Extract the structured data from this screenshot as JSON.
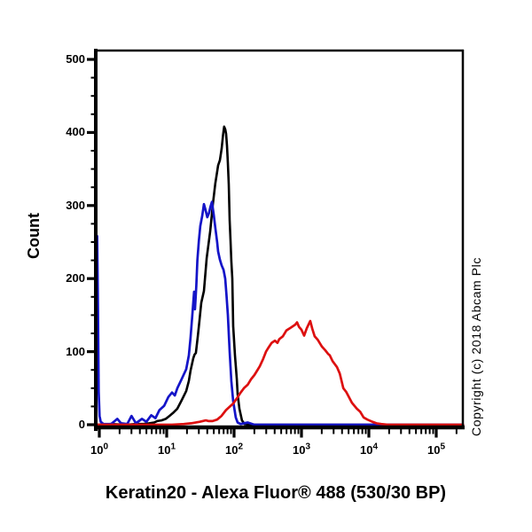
{
  "figure": {
    "background": "#ffffff"
  },
  "chart_data": {
    "type": "line",
    "subtype": "flow-cytometry-histogram-overlay",
    "title": "Keratin20 - Alexa Fluor® 488 (530/30 BP)",
    "ylabel": "Count",
    "side_text": "Copyright (c) 2018 Abcam Plc",
    "grid": false,
    "legend": false,
    "x_axis": {
      "scale": "log10",
      "range": [
        0.885,
        256000
      ],
      "ticks": [
        {
          "value": 1,
          "label_base": "10",
          "label_exp": "0"
        },
        {
          "value": 10,
          "label_base": "10",
          "label_exp": "1"
        },
        {
          "value": 100,
          "label_base": "10",
          "label_exp": "2"
        },
        {
          "value": 1000,
          "label_base": "10",
          "label_exp": "3"
        },
        {
          "value": 10000,
          "label_base": "10",
          "label_exp": "4"
        },
        {
          "value": 100000,
          "label_base": "10",
          "label_exp": "5"
        }
      ],
      "minor_ticks": "2-9 each decade"
    },
    "y_axis": {
      "range": [
        0,
        513
      ],
      "major_ticks": [
        0,
        100,
        200,
        300,
        400,
        500
      ],
      "minor_tick_step": 25
    },
    "series": [
      {
        "name": "black",
        "color": "#000000",
        "stroke_width": 2.6,
        "points": [
          [
            0.885,
            0
          ],
          [
            1.5,
            1
          ],
          [
            2.5,
            0
          ],
          [
            3.5,
            1
          ],
          [
            4.5,
            1
          ],
          [
            5.5,
            2
          ],
          [
            6.5,
            3
          ],
          [
            7.2,
            5
          ],
          [
            8.4,
            6
          ],
          [
            9.7,
            8
          ],
          [
            11,
            12
          ],
          [
            12.4,
            16
          ],
          [
            14.4,
            22
          ],
          [
            16.8,
            34
          ],
          [
            19.5,
            46
          ],
          [
            21.3,
            60
          ],
          [
            22.6,
            74
          ],
          [
            24.8,
            91
          ],
          [
            25.9,
            96
          ],
          [
            27.1,
            98
          ],
          [
            28.9,
            120
          ],
          [
            30.7,
            143
          ],
          [
            32.6,
            167
          ],
          [
            35.7,
            183
          ],
          [
            39.2,
            228
          ],
          [
            44.3,
            265
          ],
          [
            48.4,
            301
          ],
          [
            52.6,
            330
          ],
          [
            56.2,
            347
          ],
          [
            58,
            355
          ],
          [
            61.5,
            362
          ],
          [
            65.5,
            378
          ],
          [
            68.5,
            396
          ],
          [
            71.3,
            408
          ],
          [
            74,
            404
          ],
          [
            76.1,
            398
          ],
          [
            78.5,
            382
          ],
          [
            81,
            358
          ],
          [
            83.5,
            329
          ],
          [
            86,
            280
          ],
          [
            88.5,
            252
          ],
          [
            91,
            224
          ],
          [
            94,
            200
          ],
          [
            97,
            135
          ],
          [
            103,
            95
          ],
          [
            110,
            62
          ],
          [
            113,
            42
          ],
          [
            120,
            22
          ],
          [
            131,
            6
          ],
          [
            143,
            1
          ],
          [
            162,
            0
          ],
          [
            250000,
            0
          ]
        ]
      },
      {
        "name": "blue",
        "color": "#1414c8",
        "stroke_width": 2.7,
        "points": [
          [
            0.885,
            5
          ],
          [
            0.905,
            120
          ],
          [
            0.93,
            258
          ],
          [
            0.955,
            160
          ],
          [
            0.98,
            45
          ],
          [
            1.01,
            12
          ],
          [
            1.05,
            4
          ],
          [
            1.15,
            1
          ],
          [
            1.5,
            1
          ],
          [
            1.85,
            8
          ],
          [
            2.1,
            2
          ],
          [
            2.6,
            1
          ],
          [
            3.0,
            12
          ],
          [
            3.5,
            2
          ],
          [
            4.3,
            8
          ],
          [
            5.0,
            4
          ],
          [
            5.9,
            13
          ],
          [
            6.8,
            9
          ],
          [
            7.8,
            20
          ],
          [
            9.2,
            26
          ],
          [
            10.6,
            38
          ],
          [
            12,
            44
          ],
          [
            13.2,
            40
          ],
          [
            14.4,
            50
          ],
          [
            16.8,
            63
          ],
          [
            19.5,
            76
          ],
          [
            21.3,
            95
          ],
          [
            22.6,
            119
          ],
          [
            24,
            150
          ],
          [
            25.5,
            182
          ],
          [
            26.3,
            158
          ],
          [
            27.5,
            190
          ],
          [
            28.5,
            225
          ],
          [
            30,
            252
          ],
          [
            31.5,
            272
          ],
          [
            33.7,
            286
          ],
          [
            35.7,
            302
          ],
          [
            37.5,
            295
          ],
          [
            40,
            284
          ],
          [
            42.5,
            290
          ],
          [
            44.5,
            298
          ],
          [
            46.9,
            305
          ],
          [
            49.8,
            288
          ],
          [
            52.6,
            270
          ],
          [
            56,
            250
          ],
          [
            58,
            237
          ],
          [
            61.5,
            226
          ],
          [
            65.5,
            218
          ],
          [
            69.7,
            212
          ],
          [
            73.8,
            200
          ],
          [
            77,
            178
          ],
          [
            81,
            150
          ],
          [
            86,
            100
          ],
          [
            91,
            60
          ],
          [
            97,
            32
          ],
          [
            106,
            10
          ],
          [
            113,
            3
          ],
          [
            125,
            1
          ],
          [
            160,
            3
          ],
          [
            200,
            0
          ],
          [
            250000,
            0
          ]
        ]
      },
      {
        "name": "red",
        "color": "#dd1010",
        "stroke_width": 2.7,
        "points": [
          [
            0.885,
            0
          ],
          [
            12,
            0
          ],
          [
            18,
            1
          ],
          [
            23,
            2
          ],
          [
            31,
            4
          ],
          [
            38,
            6
          ],
          [
            42,
            5
          ],
          [
            48,
            5
          ],
          [
            56,
            7
          ],
          [
            65,
            12
          ],
          [
            76,
            20
          ],
          [
            87,
            25
          ],
          [
            97,
            29
          ],
          [
            110,
            36
          ],
          [
            123,
            43
          ],
          [
            140,
            50
          ],
          [
            160,
            55
          ],
          [
            178,
            62
          ],
          [
            200,
            68
          ],
          [
            220,
            74
          ],
          [
            241,
            80
          ],
          [
            270,
            90
          ],
          [
            298,
            100
          ],
          [
            326,
            106
          ],
          [
            360,
            112
          ],
          [
            403,
            115
          ],
          [
            440,
            112
          ],
          [
            467,
            117
          ],
          [
            530,
            121
          ],
          [
            597,
            129
          ],
          [
            700,
            133
          ],
          [
            809,
            137
          ],
          [
            860,
            140
          ],
          [
            920,
            134
          ],
          [
            1000,
            130
          ],
          [
            1094,
            122
          ],
          [
            1200,
            132
          ],
          [
            1350,
            142
          ],
          [
            1450,
            131
          ],
          [
            1570,
            121
          ],
          [
            1750,
            116
          ],
          [
            2010,
            107
          ],
          [
            2250,
            102
          ],
          [
            2480,
            97
          ],
          [
            2630,
            95
          ],
          [
            2900,
            87
          ],
          [
            3360,
            79
          ],
          [
            3700,
            70
          ],
          [
            4180,
            50
          ],
          [
            4600,
            45
          ],
          [
            5050,
            38
          ],
          [
            5600,
            30
          ],
          [
            6630,
            22
          ],
          [
            7400,
            18
          ],
          [
            8360,
            10
          ],
          [
            9500,
            7
          ],
          [
            11300,
            4
          ],
          [
            13000,
            2
          ],
          [
            15300,
            1
          ],
          [
            19000,
            0
          ],
          [
            250000,
            0
          ]
        ]
      }
    ]
  }
}
